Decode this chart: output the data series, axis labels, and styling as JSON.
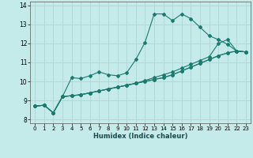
{
  "xlabel": "Humidex (Indice chaleur)",
  "ylabel": "",
  "xlim": [
    -0.5,
    23.5
  ],
  "ylim": [
    7.8,
    14.2
  ],
  "yticks": [
    8,
    9,
    10,
    11,
    12,
    13,
    14
  ],
  "xticks": [
    0,
    1,
    2,
    3,
    4,
    5,
    6,
    7,
    8,
    9,
    10,
    11,
    12,
    13,
    14,
    15,
    16,
    17,
    18,
    19,
    20,
    21,
    22,
    23
  ],
  "background_color": "#c5eaea",
  "grid_color": "#b0d8d8",
  "line_color": "#1a7a6e",
  "series": [
    {
      "x": [
        0,
        1,
        2,
        3,
        4,
        5,
        6,
        7,
        8,
        9,
        10,
        11,
        12,
        13,
        14,
        15,
        16,
        17,
        18,
        19,
        20,
        21,
        22,
        23
      ],
      "y": [
        8.7,
        8.75,
        8.35,
        9.2,
        10.2,
        10.15,
        10.3,
        10.5,
        10.35,
        10.3,
        10.45,
        11.15,
        12.05,
        13.55,
        13.55,
        13.2,
        13.55,
        13.3,
        12.85,
        12.4,
        12.2,
        11.95,
        11.6,
        11.55
      ]
    },
    {
      "x": [
        0,
        1,
        2,
        3,
        4,
        5,
        6,
        7,
        8,
        9,
        10,
        11,
        12,
        13,
        14,
        15,
        16,
        17,
        18,
        19,
        20,
        21,
        22,
        23
      ],
      "y": [
        8.7,
        8.75,
        8.35,
        9.2,
        9.25,
        9.3,
        9.4,
        9.5,
        9.6,
        9.7,
        9.8,
        9.9,
        10.05,
        10.2,
        10.35,
        10.5,
        10.7,
        10.9,
        11.1,
        11.3,
        12.0,
        12.2,
        11.6,
        11.55
      ]
    },
    {
      "x": [
        0,
        1,
        2,
        3,
        4,
        5,
        6,
        7,
        8,
        9,
        10,
        11,
        12,
        13,
        14,
        15,
        16,
        17,
        18,
        19,
        20,
        21,
        22,
        23
      ],
      "y": [
        8.7,
        8.75,
        8.35,
        9.2,
        9.25,
        9.3,
        9.4,
        9.5,
        9.6,
        9.7,
        9.8,
        9.9,
        10.0,
        10.1,
        10.2,
        10.35,
        10.55,
        10.75,
        10.95,
        11.15,
        11.35,
        11.5,
        11.6,
        11.55
      ]
    },
    {
      "x": [
        0,
        1,
        2,
        3,
        4,
        5,
        6,
        7,
        8,
        9,
        10,
        11,
        12,
        13,
        14,
        15,
        16,
        17,
        18,
        19,
        20,
        21,
        22,
        23
      ],
      "y": [
        8.7,
        8.75,
        8.35,
        9.2,
        9.25,
        9.3,
        9.4,
        9.5,
        9.6,
        9.7,
        9.8,
        9.9,
        10.0,
        10.1,
        10.2,
        10.35,
        10.55,
        10.75,
        10.95,
        11.15,
        11.35,
        11.5,
        11.6,
        11.55
      ]
    }
  ]
}
